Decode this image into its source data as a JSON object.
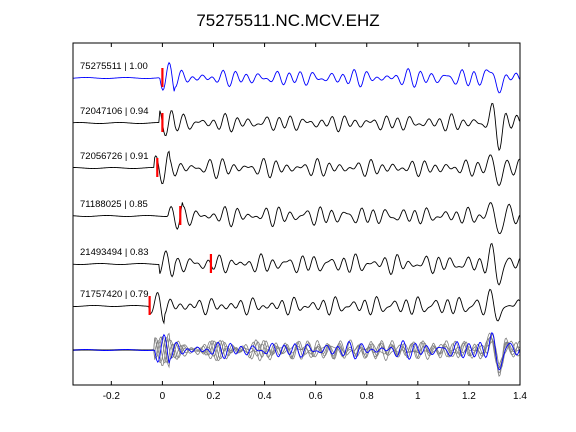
{
  "chart_data": {
    "type": "line",
    "title": "75275511.NC.MCV.EHZ",
    "xlabel": "",
    "ylabel": "",
    "xlim": [
      -0.35,
      1.4
    ],
    "xticks": [
      -0.2,
      0,
      0.2,
      0.4,
      0.6,
      0.8,
      1,
      1.2,
      1.4
    ],
    "xtick_labels": [
      "-0.2",
      "0",
      "0.2",
      "0.4",
      "0.6",
      "0.8",
      "1",
      "1.2",
      "1.4"
    ],
    "grid": false,
    "colors": {
      "reference": "#0000ff",
      "trace": "#000000",
      "stack": "#808080",
      "pick": "#ff0000",
      "axes": "#000000"
    },
    "traces": [
      {
        "id": "75275511",
        "cc": "1.00",
        "label": "75275511 | 1.00",
        "color": "#0000ff",
        "pick_time": 0.0,
        "onset_time": -0.01,
        "seed": 1
      },
      {
        "id": "72047106",
        "cc": "0.94",
        "label": "72047106 | 0.94",
        "color": "#000000",
        "pick_time": 0.0,
        "onset_time": -0.01,
        "seed": 2
      },
      {
        "id": "72056726",
        "cc": "0.91",
        "label": "72056726 | 0.91",
        "color": "#000000",
        "pick_time": -0.02,
        "onset_time": -0.03,
        "seed": 3
      },
      {
        "id": "71188025",
        "cc": "0.85",
        "label": "71188025 | 0.85",
        "color": "#000000",
        "pick_time": 0.07,
        "onset_time": 0.02,
        "seed": 4
      },
      {
        "id": "21493494",
        "cc": "0.83",
        "label": "21493494 | 0.83",
        "color": "#000000",
        "pick_time": 0.19,
        "onset_time": -0.01,
        "seed": 5
      },
      {
        "id": "71757420",
        "cc": "0.79",
        "label": "71757420 | 0.79",
        "color": "#000000",
        "pick_time": -0.05,
        "onset_time": -0.05,
        "seed": 6
      }
    ],
    "stack": {
      "color": "#808080",
      "onset_time": -0.03
    }
  }
}
